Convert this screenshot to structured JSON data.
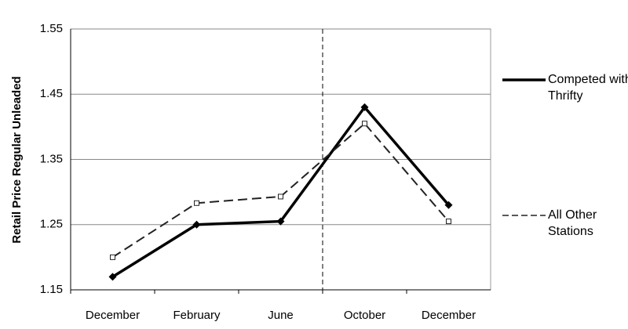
{
  "chart_data": {
    "type": "line",
    "y_label": "Retail Price Regular Unleaded",
    "categories": [
      "December",
      "February",
      "June",
      "October",
      "December"
    ],
    "series": [
      {
        "name": "Competed with Thrifty",
        "color": "#000000",
        "dashed": false,
        "marker": "diamond",
        "values": [
          1.17,
          1.25,
          1.255,
          1.43,
          1.28
        ]
      },
      {
        "name": "All Other Stations",
        "color": "#222222",
        "dashed": true,
        "marker": "square",
        "values": [
          1.2,
          1.283,
          1.293,
          1.405,
          1.255
        ]
      }
    ],
    "ylim": [
      1.15,
      1.55
    ],
    "yticks": [
      1.15,
      1.25,
      1.35,
      1.45,
      1.55
    ],
    "grid": true,
    "legend": "right"
  }
}
